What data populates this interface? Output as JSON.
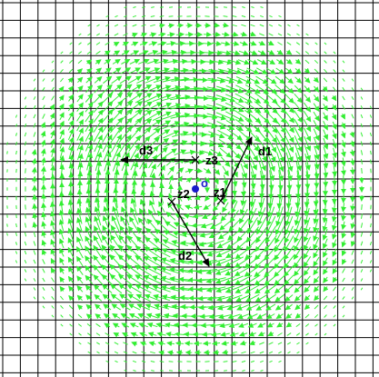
{
  "colors": {
    "background": "#ffffff",
    "grid": "#000000",
    "field_arrows": "#33ee33",
    "vectors": "#000000",
    "origin_dot": "#1a1acc",
    "origin_ring": "#1a1acc"
  },
  "labels": {
    "z1": "z1",
    "z2": "z2",
    "z3": "z3",
    "origin": "o",
    "d1": "d1",
    "d2": "d2",
    "d3": "d3"
  },
  "field": {
    "kind": "rotational",
    "direction": "clockwise",
    "magnitude_profile": "peaks in ring around center, fades outward"
  }
}
